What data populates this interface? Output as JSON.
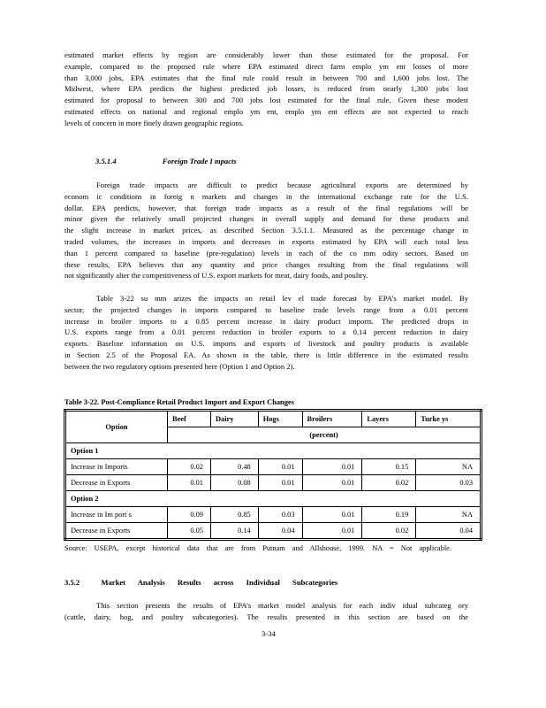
{
  "para1": [
    "estimated market effects by region are considerably lower than those estimated for the proposal. For",
    "example, compared to the proposed rule where EPA estimated direct farm emplo ym ent losses of more",
    "than 3,000 jobs, EPA estimates that the final rule could result in between 700 and 1,600 jobs lost. The",
    "Midwest, where EPA predicts the highest predicted job losses, is reduced from nearly 1,300 jobs lost",
    "estimated for proposal to between 300 and 700 jobs lost estimated for the final rule. Given these modest",
    "estimated effects on national and regional emplo ym ent, emplo ym ent effects are not expected to reach",
    "levels of concern in more finely drawn geographic regions."
  ],
  "heading1": {
    "number": "3.5.1.4",
    "title": "Foreign Trade I mpacts"
  },
  "para2": [
    "Foreign trade impacts are difficult to predict because agricultural exports are determined by",
    "econom ic conditions in foreig n markets and changes in the international exchange rate for the U.S.",
    "dollar. EPA predicts, however, that foreign trade impacts as a result of the final regulations will be",
    "minor given the relatively small projected changes in overall supply and demand for these products and",
    "the slight increase in market prices, as described Section 3.5.1.1. Measured as the percentage change in",
    "traded volumes, the increases in imports and decreases in exports estimated by EPA will each total less",
    "than 1 percent compared to baseline (pre-regulation) levels in each of the co mm odity sectors. Based on",
    "these results, EPA believes that any quantity and price changes resulting from the final regulations will",
    "not significantly alter the competitiveness of U.S. export markets for meat, dairy foods, and poultry."
  ],
  "para3": [
    "Table 3-22 su mm arizes the impacts on retail lev el trade forecast by EPA’s market model. By",
    "sector, the projected changes in imports compared to baseline trade levels range from a 0.01 percent",
    "increase in broiler imports to a 0.85 percent increase in dairy product imports. The predicted drops in",
    "U.S. exports range from a 0.01 percent reduction in broiler exports to a 0.14 percent reduction in dairy",
    "exports. Baseline information on U.S. imports and exports of livestock and poultry products is available",
    "in Section 2.5 of the Proposal EA. As shown in the table, there is little difference in the estimated results",
    "between the two regulatory options presented here (Option 1 and Option 2)."
  ],
  "table": {
    "caption": "Table 3-22. Post-Compliance Retail Product Import and Export Changes",
    "option_header": "Option",
    "columns": [
      "Beef",
      "Dairy",
      "Hogs",
      "Broilers",
      "Layers",
      "Turke ys"
    ],
    "unit": "(percent)",
    "groups": [
      {
        "label": "Option 1",
        "rows": [
          {
            "label": "Increase in Imports",
            "values": [
              "0.02",
              "0.48",
              "0.01",
              "0.01",
              "0.15",
              "NA"
            ]
          },
          {
            "label": "Decrease in Exports",
            "values": [
              "0.01",
              "0.08",
              "0.01",
              "0.01",
              "0.02",
              "0.03"
            ]
          }
        ]
      },
      {
        "label": "Option 2",
        "rows": [
          {
            "label": "Increase in Im port s",
            "values": [
              "0.09",
              "0.85",
              "0.03",
              "0.01",
              "0.19",
              "NA"
            ]
          },
          {
            "label": "Decrease in Exports",
            "values": [
              "0.05",
              "0.14",
              "0.04",
              "0.01",
              "0.02",
              "0.04"
            ]
          }
        ]
      }
    ],
    "source": "Source: USEPA, except historical data that are from Putnam and Allshouse, 1999. NA = Not applicable."
  },
  "heading2": {
    "number": "3.5.2",
    "title": "Market Analysis Results across Individual Subcategories"
  },
  "para4": [
    "This section presents the results of EPA’s market model analysis for each indiv idual subcateg ory",
    "(cattle, dairy, hog, and poultry subcategories). The results presented in this section are based on the"
  ],
  "page_number": "3-34"
}
